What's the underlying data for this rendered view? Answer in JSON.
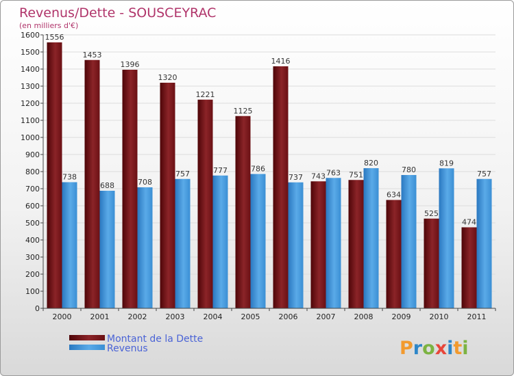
{
  "title": "Revenus/Dette - SOUSCEYRAC",
  "subtitle": "(en milliers d'€)",
  "logo": {
    "text": "Proxiti",
    "colors": [
      "#f29a2e",
      "#2e86c8",
      "#7cb342",
      "#e8463a",
      "#2e86c8",
      "#f29a2e",
      "#7cb342"
    ]
  },
  "chart_data": {
    "type": "bar",
    "title": "Revenus/Dette - SOUSCEYRAC",
    "subtitle": "(en milliers d'€)",
    "categories": [
      "2000",
      "2001",
      "2002",
      "2003",
      "2004",
      "2005",
      "2006",
      "2007",
      "2008",
      "2009",
      "2010",
      "2011"
    ],
    "series": [
      {
        "name": "Montant de la Dette",
        "color": "#7a1a1e",
        "values": [
          1556,
          1453,
          1396,
          1320,
          1221,
          1125,
          1416,
          743,
          751,
          634,
          525,
          474
        ]
      },
      {
        "name": "Revenus",
        "color": "#3d95dc",
        "values": [
          738,
          688,
          708,
          757,
          777,
          786,
          737,
          763,
          820,
          780,
          819,
          757
        ]
      }
    ],
    "yticks": [
      0,
      100,
      200,
      300,
      400,
      500,
      600,
      700,
      800,
      900,
      1000,
      1100,
      1200,
      1300,
      1400,
      1500,
      1600
    ],
    "ylim": [
      0,
      1600
    ],
    "grid": true,
    "legend_position": "bottom-left"
  }
}
